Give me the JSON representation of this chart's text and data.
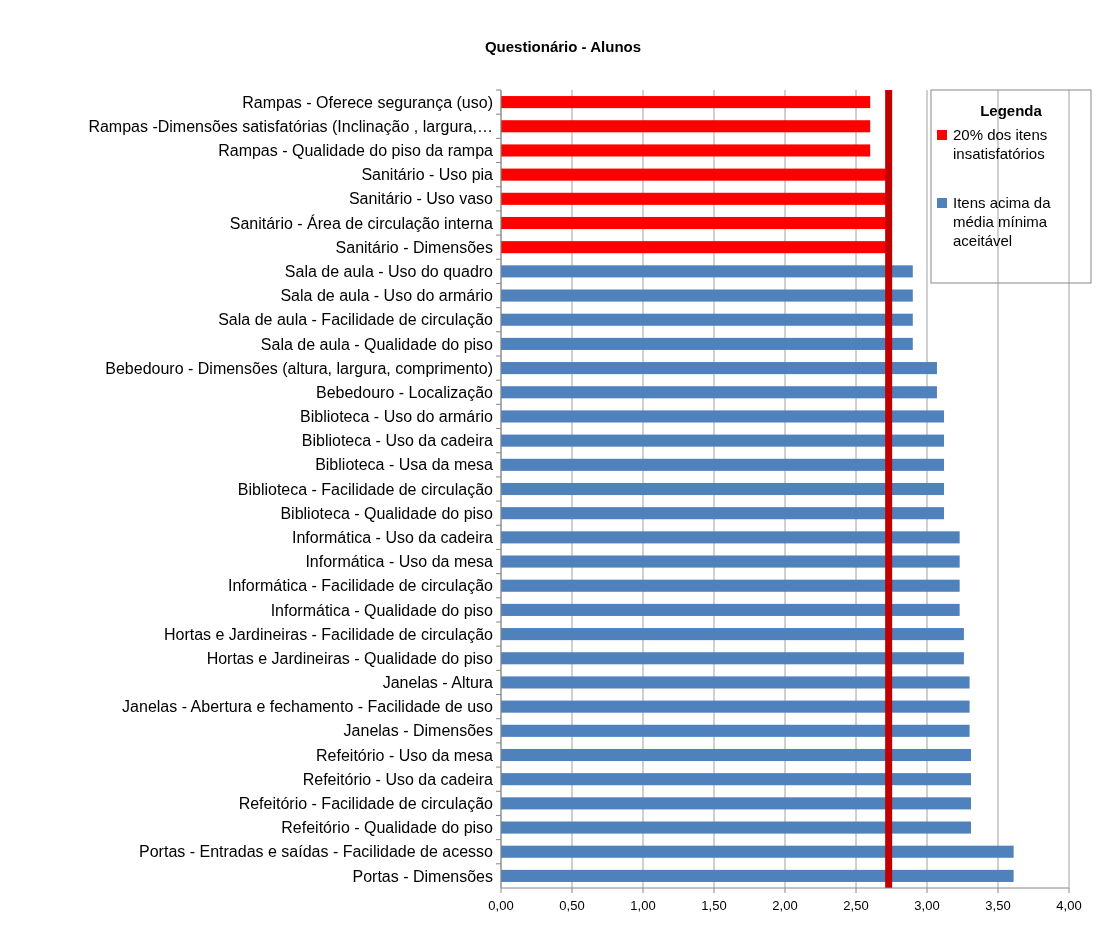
{
  "chart_data": {
    "type": "bar",
    "orientation": "horizontal",
    "title": "Questionário - Alunos",
    "legend_title": "Legenda",
    "legend": "top right",
    "grid": "x",
    "categories": [
      "Rampas - Oferece segurança (uso)",
      "Rampas -Dimensões satisfatórias  (Inclinação , largura,…",
      "Rampas - Qualidade do piso da rampa",
      "Sanitário - Uso pia",
      "Sanitário - Uso vaso",
      "Sanitário - Área de circulação interna",
      "Sanitário - Dimensões",
      "Sala de aula - Uso do quadro",
      "Sala de aula - Uso do armário",
      "Sala de aula - Facilidade de circulação",
      "Sala de aula - Qualidade do piso",
      "Bebedouro - Dimensões (altura, largura, comprimento)",
      "Bebedouro - Localização",
      "Biblioteca - Uso do armário",
      "Biblioteca - Uso da cadeira",
      "Biblioteca - Usa da mesa",
      "Biblioteca - Facilidade de circulação",
      "Biblioteca - Qualidade do piso",
      "Informática - Uso da cadeira",
      "Informática - Uso da mesa",
      "Informática - Facilidade de circulação",
      "Informática - Qualidade do piso",
      "Hortas e Jardineiras - Facilidade de circulação",
      "Hortas e Jardineiras - Qualidade do piso",
      "Janelas - Altura",
      "Janelas - Abertura e fechamento - Facilidade de uso",
      "Janelas - Dimensões",
      "Refeitório - Uso da mesa",
      "Refeitório - Uso da cadeira",
      "Refeitório - Facilidade de circulação",
      "Refeitório - Qualidade do piso",
      "Portas - Entradas e saídas - Facilidade de acesso",
      "Portas - Dimensões"
    ],
    "series": [
      {
        "name": "20% dos itens insatisfatórios",
        "color": "#ff0000",
        "values": [
          2.6,
          2.6,
          2.6,
          2.71,
          2.71,
          2.71,
          2.71,
          null,
          null,
          null,
          null,
          null,
          null,
          null,
          null,
          null,
          null,
          null,
          null,
          null,
          null,
          null,
          null,
          null,
          null,
          null,
          null,
          null,
          null,
          null,
          null,
          null,
          null
        ]
      },
      {
        "name": "Itens acima da média mínima aceitável",
        "color": "#4f81bd",
        "values": [
          null,
          null,
          null,
          null,
          null,
          null,
          null,
          2.9,
          2.9,
          2.9,
          2.9,
          3.07,
          3.07,
          3.12,
          3.12,
          3.12,
          3.12,
          3.12,
          3.23,
          3.23,
          3.23,
          3.23,
          3.26,
          3.26,
          3.3,
          3.3,
          3.3,
          3.31,
          3.31,
          3.31,
          3.31,
          3.61,
          3.61
        ]
      }
    ],
    "xlim": [
      0,
      4
    ],
    "xticks": [
      {
        "value": 0,
        "label": "0,00"
      },
      {
        "value": 0.5,
        "label": "0,50"
      },
      {
        "value": 1,
        "label": "1,00"
      },
      {
        "value": 1.5,
        "label": "1,50"
      },
      {
        "value": 2,
        "label": "2,00"
      },
      {
        "value": 2.5,
        "label": "2,50"
      },
      {
        "value": 3,
        "label": "3,00"
      },
      {
        "value": 3.5,
        "label": "3,50"
      },
      {
        "value": 4,
        "label": "4,00"
      }
    ],
    "ref_lines": [
      {
        "axis": "x",
        "value": 2.73,
        "color": "#c00000"
      }
    ]
  }
}
